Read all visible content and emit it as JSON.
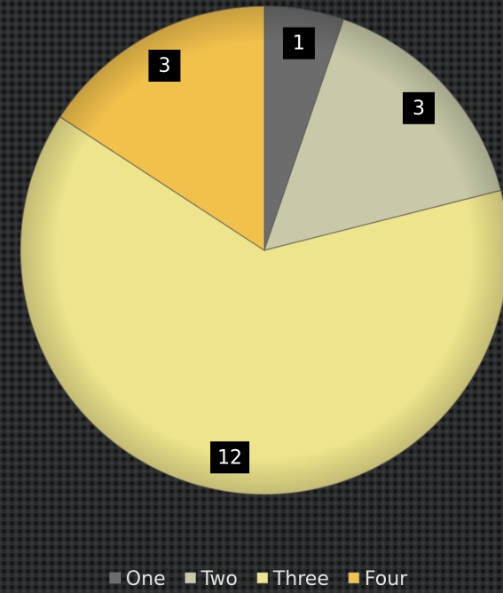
{
  "chart_data": {
    "type": "pie",
    "categories": [
      "One",
      "Two",
      "Three",
      "Four"
    ],
    "values": [
      1,
      3,
      12,
      3
    ],
    "colors": [
      "#6c6c6c",
      "#c9c9a9",
      "#ede48c",
      "#f2c14c"
    ],
    "legend": "bottom"
  }
}
